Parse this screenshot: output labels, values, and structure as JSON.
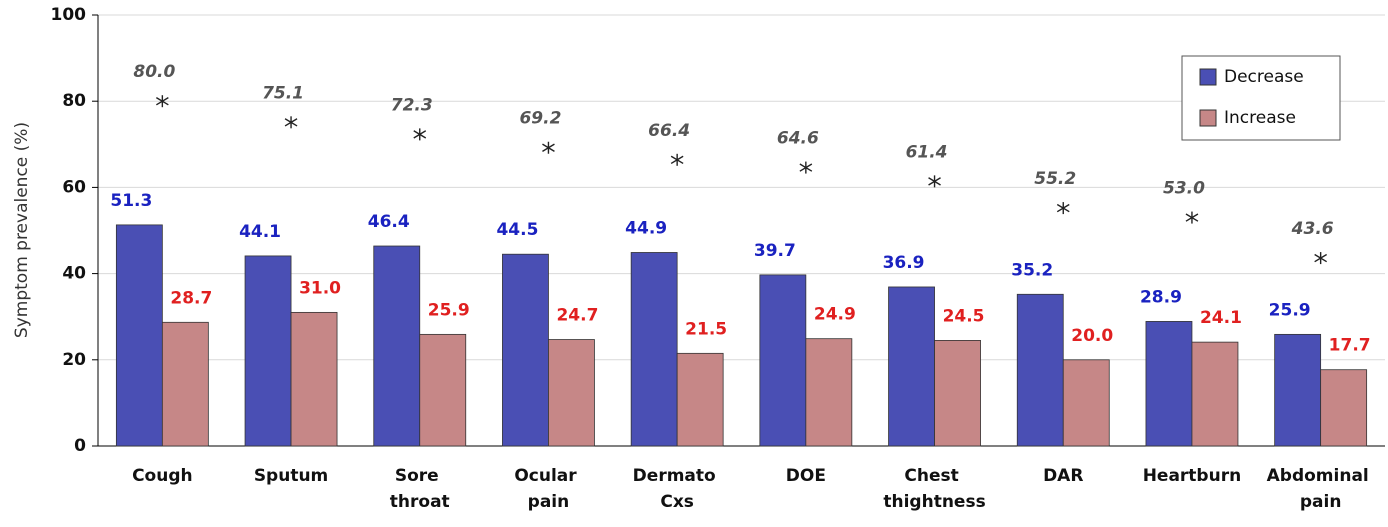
{
  "chart_data": {
    "type": "bar",
    "y_label": "Symptom prevalence (%)",
    "categories": [
      "Cough",
      "Sputum",
      "Sore throat",
      "Ocular pain",
      "Dermato Cxs",
      "DOE",
      "Chest thightness",
      "DAR",
      "Heartburn",
      "Abdominal pain"
    ],
    "series": [
      {
        "name": "Decrease",
        "color": "#4a4fb4",
        "label_color": "#1a22c0",
        "values": [
          51.3,
          44.1,
          46.4,
          44.5,
          44.9,
          39.7,
          36.9,
          35.2,
          28.9,
          25.9
        ],
        "value_labels": [
          "51.3",
          "44.1",
          "46.4",
          "44.5",
          "44.9",
          "39.7",
          "36.9",
          "35.2",
          "28.9",
          "25.9"
        ]
      },
      {
        "name": "Increase",
        "color": "#c68787",
        "label_color": "#e02020",
        "values": [
          28.7,
          31.0,
          25.9,
          24.7,
          21.5,
          24.9,
          24.5,
          20.0,
          24.1,
          17.7
        ],
        "value_labels": [
          "28.7",
          "31.0",
          "25.9",
          "24.7",
          "21.5",
          "24.9",
          "24.5",
          "20.0",
          "24.1",
          "17.7"
        ]
      },
      {
        "color": "#222222",
        "label_color": "#555555",
        "marker": "asterisk",
        "values": [
          80.0,
          75.1,
          72.3,
          69.2,
          66.4,
          64.6,
          61.4,
          55.2,
          53.0,
          43.6
        ],
        "value_labels": [
          "80.0",
          "75.1",
          "72.3",
          "69.2",
          "66.4",
          "64.6",
          "61.4",
          "55.2",
          "53.0",
          "43.6"
        ]
      }
    ],
    "ylim": [
      0,
      100
    ],
    "yticks": [
      0,
      20,
      40,
      60,
      80,
      100
    ],
    "grid": true,
    "legend": "upper right"
  }
}
